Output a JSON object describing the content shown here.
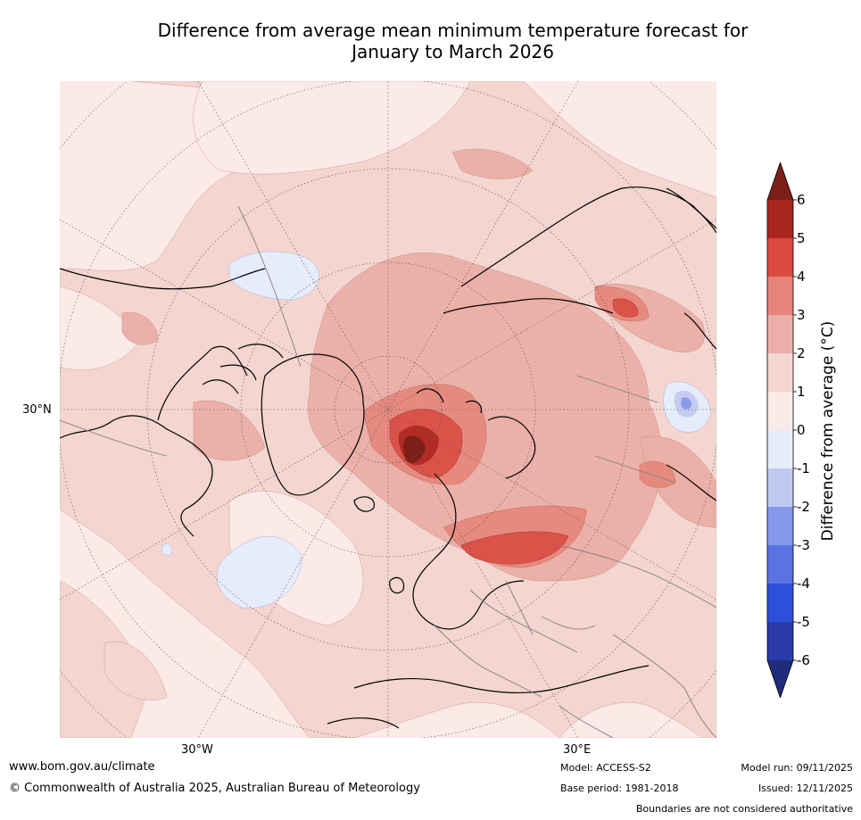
{
  "title": {
    "line1": "Difference from average mean minimum temperature forecast for",
    "line2": "January to March 2026"
  },
  "map": {
    "lat_label": "30°N",
    "lon_label_west": "30°W",
    "lon_label_east": "30°E",
    "colors": {
      "ocean_land_base": "#fbeae7",
      "band_1_2": "#f4d5d0",
      "band_2_3": "#ebb0a8",
      "band_3_4": "#e68a80",
      "band_4_5": "#db5248",
      "band_5_6": "#b22c25",
      "band_6_plus": "#7d1e18",
      "band_0_neg1": "#e7ecfb",
      "band_neg1_neg2": "#c5ccf2",
      "band_neg2_neg3": "#8b9ae9",
      "coast": "#000000",
      "border": "#808080"
    }
  },
  "colorbar": {
    "label": "Difference from average (°C)",
    "ticks": [
      "6",
      "5",
      "4",
      "3",
      "2",
      "1",
      "0",
      "-1",
      "-2",
      "-3",
      "-4",
      "-5",
      "-6"
    ],
    "colors": [
      "#7d1e18",
      "#a8261f",
      "#db4a40",
      "#e6837a",
      "#ebafa7",
      "#f4d5d0",
      "#fbeae7",
      "#e7ecfb",
      "#c1c8f2",
      "#8797ea",
      "#5b72e3",
      "#2e4fd9",
      "#2a3aa8",
      "#1f2c7a"
    ]
  },
  "footer": {
    "website": "www.bom.gov.au/climate",
    "copyright": "© Commonwealth of Australia 2025, Australian Bureau of Meteorology",
    "model": "Model: ACCESS-S2",
    "base_period": "Base period: 1981-2018",
    "model_run": "Model run: 09/11/2025",
    "issued": "Issued: 12/11/2025",
    "disclaimer": "Boundaries are not considered authoritative"
  }
}
